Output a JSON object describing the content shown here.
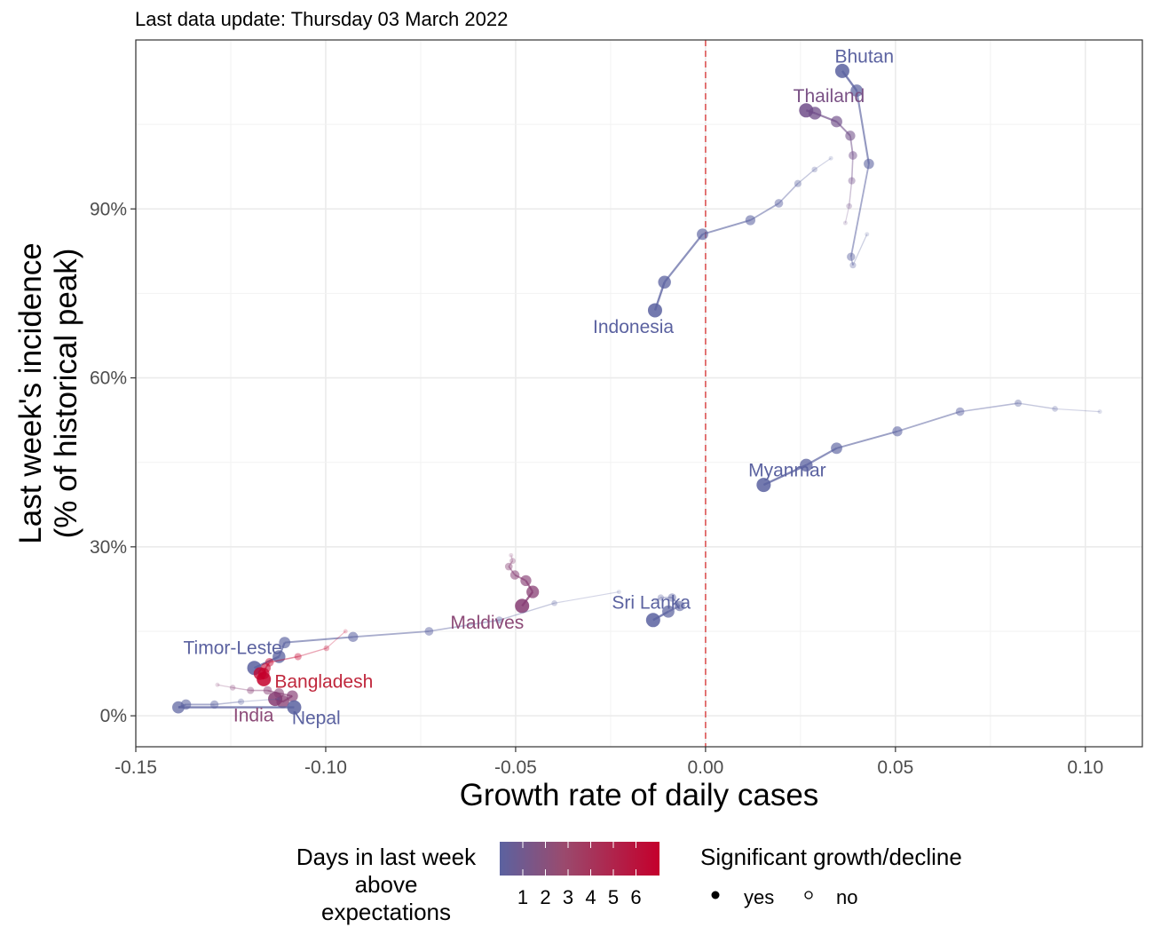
{
  "chart_data": {
    "type": "scatter",
    "subtitle": "Last data update: Thursday 03 March 2022",
    "xlabel": "Growth rate of daily cases",
    "ylabel_line1": "Last week's incidence",
    "ylabel_line2": "(% of historical peak)",
    "xlim": [
      -0.15,
      0.115
    ],
    "ylim": [
      -5.5,
      120
    ],
    "x_ticks": [
      -0.15,
      -0.1,
      -0.05,
      0.0,
      0.05,
      0.1
    ],
    "x_tick_labels": [
      "-0.15",
      "-0.10",
      "-0.05",
      "0.00",
      "0.05",
      "0.10"
    ],
    "y_ticks": [
      0,
      30,
      60,
      90
    ],
    "y_tick_labels": [
      "0%",
      "30%",
      "60%",
      "90%"
    ],
    "grid": true,
    "reference_line_x": 0,
    "colors": {
      "low": "#5b62a0",
      "high": "#c4002c",
      "reference_line": "#e06666",
      "grid": "#ebebeb"
    },
    "series": [
      {
        "name": "Bhutan",
        "label": "Bhutan",
        "days_above": 1,
        "label_pos": [
          0.0418,
          116
        ],
        "label_color": "#5b62a0",
        "points": [
          [
            0.0425,
            85.5
          ],
          [
            0.0388,
            80
          ],
          [
            0.0383,
            81.5
          ],
          [
            0.043,
            98
          ],
          [
            0.0398,
            111
          ],
          [
            0.036,
            114.5
          ]
        ]
      },
      {
        "name": "Thailand",
        "label": "Thailand",
        "days_above": 2,
        "label_pos": [
          0.0325,
          109
        ],
        "label_color": "#7a5185",
        "points": [
          [
            0.0368,
            87.5
          ],
          [
            0.0378,
            90.5
          ],
          [
            0.0385,
            95
          ],
          [
            0.0388,
            99.5
          ],
          [
            0.0381,
            103
          ],
          [
            0.0345,
            105.5
          ],
          [
            0.0288,
            107
          ],
          [
            0.0265,
            107.5
          ]
        ]
      },
      {
        "name": "Indonesia",
        "label": "Indonesia",
        "days_above": 1,
        "label_pos": [
          -0.019,
          68
        ],
        "label_color": "#5b62a0",
        "points": [
          [
            0.033,
            99
          ],
          [
            0.0287,
            97
          ],
          [
            0.0243,
            94.5
          ],
          [
            0.0193,
            91
          ],
          [
            0.0118,
            88
          ],
          [
            -0.0008,
            85.5
          ],
          [
            -0.0108,
            77
          ],
          [
            -0.0133,
            72
          ]
        ]
      },
      {
        "name": "Myanmar",
        "label": "Myanmar",
        "days_above": 1,
        "label_pos": [
          0.0215,
          42.5
        ],
        "label_color": "#5b62a0",
        "points": [
          [
            0.1038,
            54
          ],
          [
            0.092,
            54.5
          ],
          [
            0.0823,
            55.5
          ],
          [
            0.067,
            54
          ],
          [
            0.0505,
            50.5
          ],
          [
            0.0345,
            47.5
          ],
          [
            0.0265,
            44.5
          ],
          [
            0.0153,
            41
          ]
        ]
      },
      {
        "name": "Sri Lanka",
        "label": "Sri Lanka",
        "days_above": 1,
        "label_pos": [
          -0.0143,
          19
        ],
        "label_color": "#5b62a0",
        "points": [
          [
            -0.0128,
            20.5
          ],
          [
            -0.0118,
            21
          ],
          [
            -0.0088,
            21
          ],
          [
            -0.0068,
            19.5
          ],
          [
            -0.0098,
            18.5
          ],
          [
            -0.0138,
            17
          ]
        ]
      },
      {
        "name": "Maldives",
        "label": "Maldives",
        "days_above": 3,
        "label_pos": [
          -0.0575,
          15.5
        ],
        "label_color": "#8c4a77",
        "points": [
          [
            -0.0512,
            28.5
          ],
          [
            -0.0508,
            27.5
          ],
          [
            -0.0518,
            26.5
          ],
          [
            -0.0502,
            25
          ],
          [
            -0.0473,
            24
          ],
          [
            -0.0455,
            22
          ],
          [
            -0.0483,
            19.5
          ]
        ]
      },
      {
        "name": "Timor-Leste",
        "label": "Timor-Leste",
        "days_above": 1,
        "label_pos": [
          -0.1245,
          11
        ],
        "label_color": "#5b62a0",
        "points": [
          [
            -0.0228,
            22
          ],
          [
            -0.0398,
            20
          ],
          [
            -0.0543,
            17
          ],
          [
            -0.0728,
            15
          ],
          [
            -0.0928,
            14
          ],
          [
            -0.1108,
            13
          ],
          [
            -0.1123,
            10.5
          ],
          [
            -0.1188,
            8.5
          ]
        ]
      },
      {
        "name": "Bangladesh",
        "label": "Bangladesh",
        "days_above": 6,
        "label_pos": [
          -0.1005,
          5
        ],
        "label_color": "#c0283d",
        "points": [
          [
            -0.0948,
            15
          ],
          [
            -0.0998,
            12
          ],
          [
            -0.1073,
            10.5
          ],
          [
            -0.1148,
            9.5
          ],
          [
            -0.1158,
            8.5
          ],
          [
            -0.1163,
            7.5
          ],
          [
            -0.1173,
            7.5
          ],
          [
            -0.1163,
            6.5
          ]
        ]
      },
      {
        "name": "India",
        "label": "India",
        "days_above": 3,
        "label_pos": [
          -0.119,
          -1
        ],
        "label_color": "#8c4a77",
        "points": [
          [
            -0.1285,
            5.5
          ],
          [
            -0.1245,
            5
          ],
          [
            -0.1198,
            4.5
          ],
          [
            -0.1153,
            4.5
          ],
          [
            -0.1123,
            4
          ],
          [
            -0.1088,
            3.5
          ],
          [
            -0.1113,
            2.5
          ],
          [
            -0.1133,
            3
          ]
        ]
      },
      {
        "name": "Nepal",
        "label": "Nepal",
        "days_above": 1,
        "label_pos": [
          -0.1025,
          -1.5
        ],
        "label_color": "#5b62a0",
        "points": [
          [
            -0.1123,
            3
          ],
          [
            -0.1223,
            2.5
          ],
          [
            -0.1293,
            2
          ],
          [
            -0.1368,
            2
          ],
          [
            -0.1388,
            1.5
          ],
          [
            -0.1083,
            1.5
          ]
        ]
      }
    ],
    "legend": {
      "position": "bottom",
      "color_title_lines": [
        "Days in last week",
        "above",
        "expectations"
      ],
      "color_scale_labels": [
        "1",
        "2",
        "3",
        "4",
        "5",
        "6"
      ],
      "shape_title": "Significant growth/decline",
      "shape_entries": [
        {
          "label": "yes",
          "shape": "filled-dot"
        },
        {
          "label": "no",
          "shape": "open-circle"
        }
      ]
    }
  }
}
